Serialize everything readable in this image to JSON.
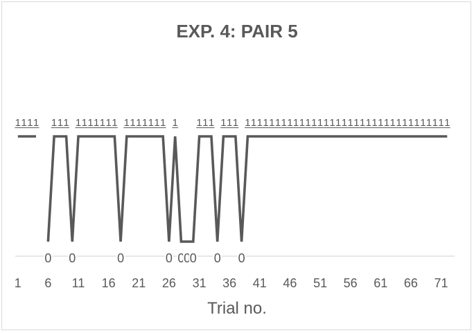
{
  "chart_data": {
    "type": "line",
    "title": "EXP. 4: PAIR 5",
    "xlabel": "Trial no.",
    "ylabel": "",
    "x": [
      1,
      2,
      3,
      4,
      5,
      6,
      7,
      8,
      9,
      10,
      11,
      12,
      13,
      14,
      15,
      16,
      17,
      18,
      19,
      20,
      21,
      22,
      23,
      24,
      25,
      26,
      27,
      28,
      29,
      30,
      31,
      32,
      33,
      34,
      35,
      36,
      37,
      38,
      39,
      40,
      41,
      42,
      43,
      44,
      45,
      46,
      47,
      48,
      49,
      50,
      51,
      52,
      53,
      54,
      55,
      56,
      57,
      58,
      59,
      60,
      61,
      62,
      63,
      64,
      65,
      66,
      67,
      68,
      69,
      70,
      71,
      72
    ],
    "x_tick_labels": [
      "1",
      "6",
      "11",
      "16",
      "21",
      "26",
      "31",
      "36",
      "41",
      "46",
      "51",
      "56",
      "61",
      "66",
      "71"
    ],
    "ylim": [
      0,
      1
    ],
    "series": [
      {
        "values": [
          1,
          1,
          1,
          1,
          null,
          0,
          1,
          1,
          1,
          0,
          1,
          1,
          1,
          1,
          1,
          1,
          1,
          0,
          1,
          1,
          1,
          1,
          1,
          1,
          1,
          0,
          1,
          0,
          0,
          0,
          1,
          1,
          1,
          0,
          1,
          1,
          1,
          0,
          1,
          1,
          1,
          1,
          1,
          1,
          1,
          1,
          1,
          1,
          1,
          1,
          1,
          1,
          1,
          1,
          1,
          1,
          1,
          1,
          1,
          1,
          1,
          1,
          1,
          1,
          1,
          1,
          1,
          1,
          1,
          1,
          1,
          1
        ],
        "data_labels": true,
        "color": "#595959"
      }
    ],
    "grid": false,
    "legend": "none"
  }
}
